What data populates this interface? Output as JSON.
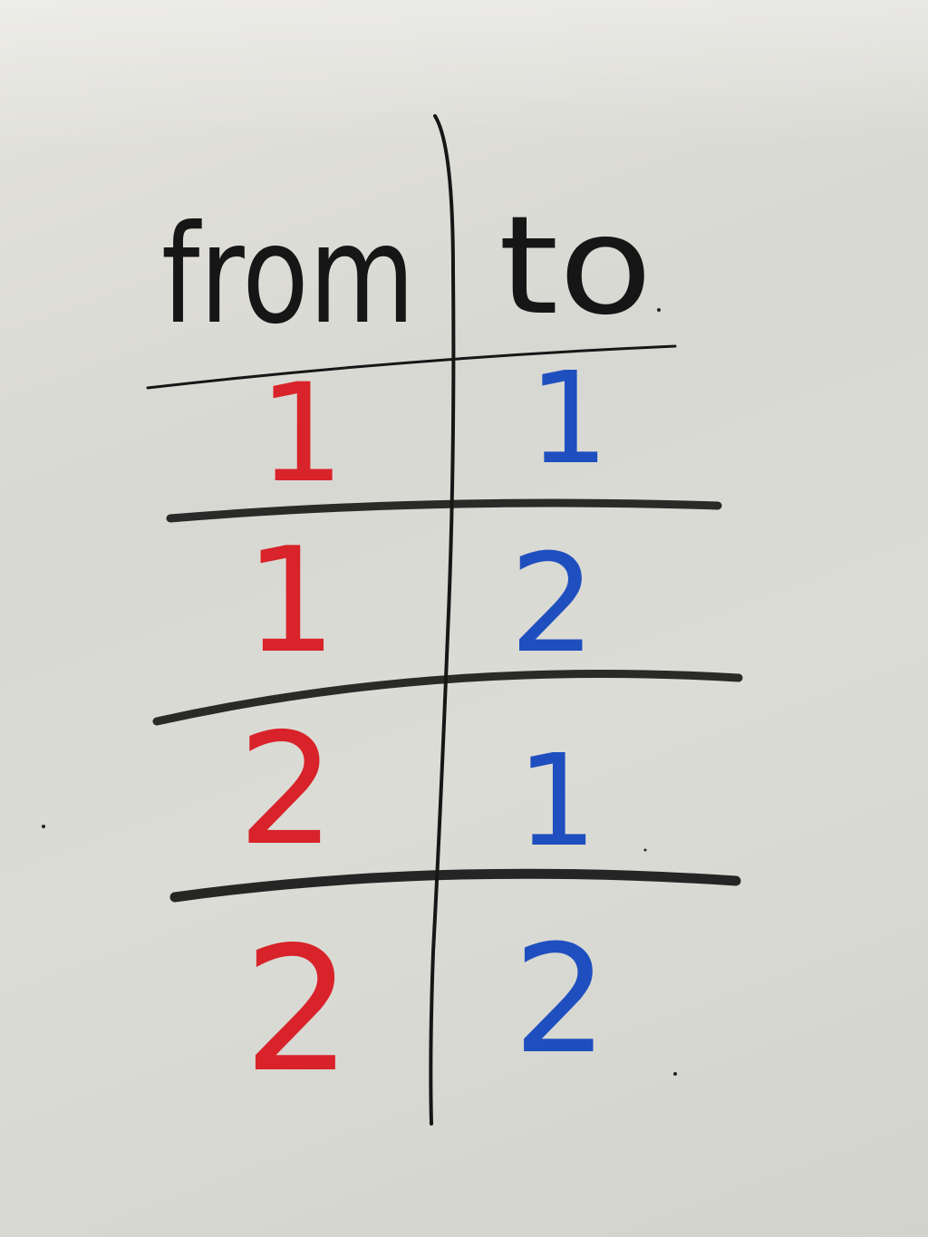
{
  "table": {
    "headers": {
      "from": "from",
      "to": "to"
    },
    "rows": [
      {
        "from": "1",
        "to": "1"
      },
      {
        "from": "1",
        "to": "2"
      },
      {
        "from": "2",
        "to": "1"
      },
      {
        "from": "2",
        "to": "2"
      }
    ]
  },
  "colors": {
    "board": "#dcdcd6",
    "marker_black": "#161616",
    "marker_red": "#d8232a",
    "marker_blue": "#1f4fbf"
  }
}
